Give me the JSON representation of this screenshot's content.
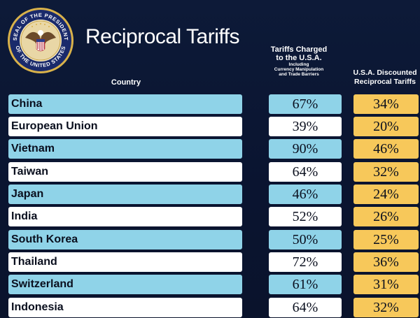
{
  "header": {
    "title": "Reciprocal Tariffs",
    "seal_text_top": "SEAL OF THE PRESIDENT",
    "seal_text_bottom": "OF THE UNITED STATES"
  },
  "columns": {
    "country": "Country",
    "charged_title_1": "Tariffs Charged",
    "charged_title_2": "to the U.S.A.",
    "charged_sub_1": "Including",
    "charged_sub_2": "Currency Manipulation",
    "charged_sub_3": "and Trade Barriers",
    "discounted_1": "U.S.A. Discounted",
    "discounted_2": "Reciprocal Tariffs"
  },
  "rows": [
    {
      "country": "China",
      "charged": "67%",
      "discounted": "34%"
    },
    {
      "country": "European Union",
      "charged": "39%",
      "discounted": "20%"
    },
    {
      "country": "Vietnam",
      "charged": "90%",
      "discounted": "46%"
    },
    {
      "country": "Taiwan",
      "charged": "64%",
      "discounted": "32%"
    },
    {
      "country": "Japan",
      "charged": "46%",
      "discounted": "24%"
    },
    {
      "country": "India",
      "charged": "52%",
      "discounted": "26%"
    },
    {
      "country": "South Korea",
      "charged": "50%",
      "discounted": "25%"
    },
    {
      "country": "Thailand",
      "charged": "72%",
      "discounted": "36%"
    },
    {
      "country": "Switzerland",
      "charged": "61%",
      "discounted": "31%"
    },
    {
      "country": "Indonesia",
      "charged": "64%",
      "discounted": "32%"
    }
  ],
  "colors": {
    "background": "#0b1530",
    "row_blue": "#8fd3e8",
    "row_white": "#ffffff",
    "discount_yellow": "#f7c85a",
    "seal_gold": "#d9b24a",
    "seal_navy": "#1a2a6b"
  }
}
